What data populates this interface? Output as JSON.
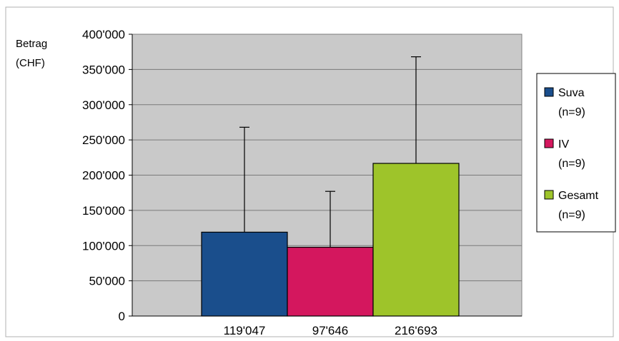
{
  "chart_data": {
    "type": "bar",
    "ylabel_lines": [
      "Betrag",
      "(CHF)"
    ],
    "ylim": [
      0,
      400000
    ],
    "y_ticks": [
      0,
      50000,
      100000,
      150000,
      200000,
      250000,
      300000,
      350000,
      400000
    ],
    "y_tick_labels": [
      "0",
      "50'000",
      "100'000",
      "150'000",
      "200'000",
      "250'000",
      "300'000",
      "350'000",
      "400'000"
    ],
    "categories": [
      "119'047",
      "97'646",
      "216'693"
    ],
    "grid": true,
    "legend_position": "right",
    "series": [
      {
        "name": "Suva",
        "sub": "(n=9)",
        "value": 119047,
        "error_upper": 268000,
        "color": "#1a4e8c"
      },
      {
        "name": "IV",
        "sub": "(n=9)",
        "value": 97646,
        "error_upper": 177000,
        "color": "#d4175e"
      },
      {
        "name": "Gesamt",
        "sub": "(n=9)",
        "value": 216693,
        "error_upper": 368000,
        "color": "#9ec42a"
      }
    ],
    "plot_background": "#c9c9c9"
  }
}
